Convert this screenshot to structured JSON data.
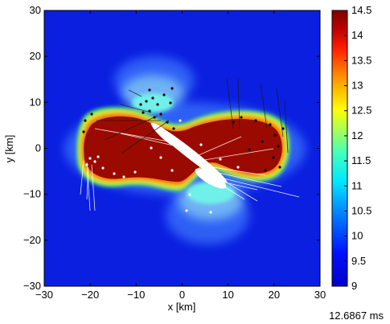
{
  "chart_data": {
    "type": "heatmap",
    "xlabel": "x [km]",
    "ylabel": "y [km]",
    "xlim": [
      -30,
      30
    ],
    "ylim": [
      -30,
      30
    ],
    "xticks": [
      -30,
      -20,
      -10,
      0,
      10,
      20,
      30
    ],
    "yticks": [
      -30,
      -20,
      -10,
      0,
      10,
      20,
      30
    ],
    "colorbar": {
      "range": [
        9,
        14.5
      ],
      "ticks": [
        "14.5",
        "14",
        "13.5",
        "13",
        "12.5",
        "12",
        "11.5",
        "11",
        "10.5",
        "10",
        "9.5",
        "9"
      ]
    },
    "colors": {
      "background": "#0a1fe0",
      "halo_outer": "#2f5ef5",
      "halo_mid": "#6fb2f5",
      "halo_inner": "#6ff0e8",
      "edge_green": "#48f060",
      "edge_yellow": "#f2e020",
      "edge_orange": "#f07010",
      "core": "#9b0a00",
      "core_dark": "#800000"
    },
    "time_label": "12.6867 ms"
  }
}
